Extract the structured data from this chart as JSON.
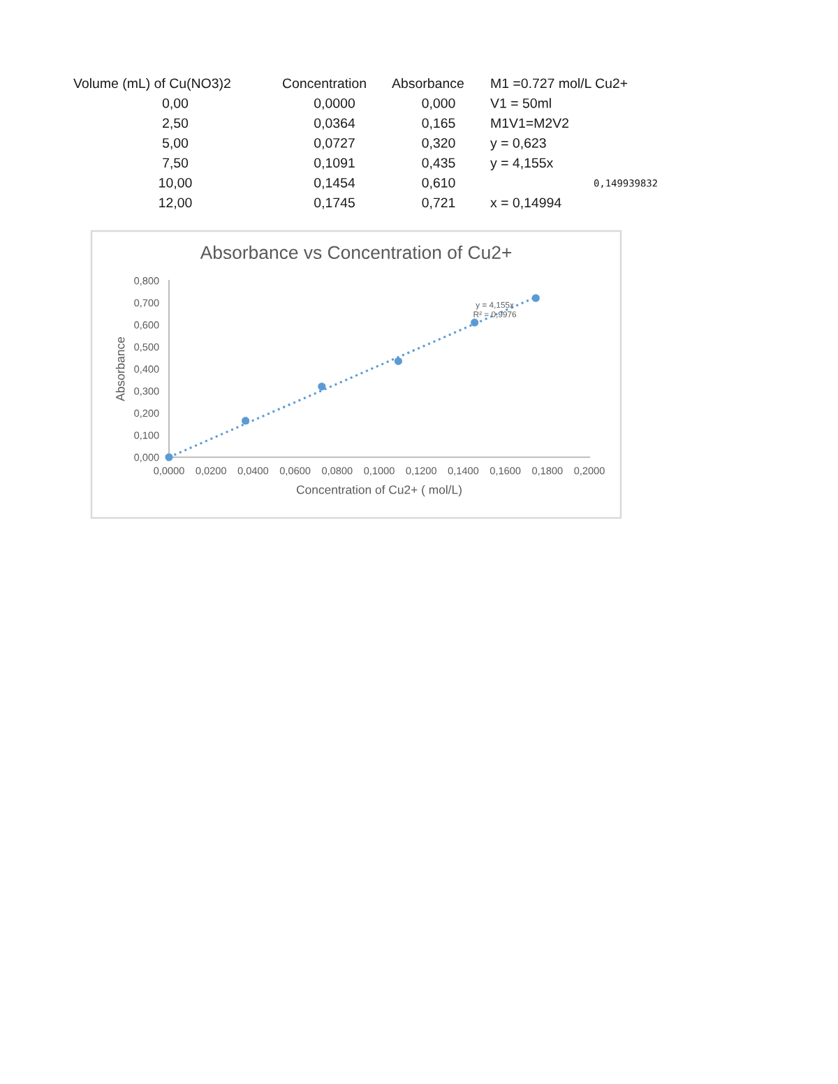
{
  "chart_data": {
    "type": "scatter",
    "title": "Absorbance vs Concentration of Cu2+",
    "xlabel": "Concentration of Cu2+ ( mol/L)",
    "ylabel": "Absorbance",
    "marker": "circle",
    "series": [
      {
        "color": "#5b9bd5",
        "x": [
          0.0,
          0.0364,
          0.0727,
          0.1091,
          0.1454,
          0.1745
        ],
        "values": [
          0.0,
          0.165,
          0.32,
          0.435,
          0.61,
          0.721
        ]
      },
      {
        "type": "line",
        "color": "#5b9bd5",
        "marker": "none",
        "line_style": "dotted",
        "x": [
          0.0,
          0.1745
        ],
        "values": [
          0.0,
          0.725
        ]
      }
    ],
    "xlim": [
      0,
      0.2
    ],
    "xticks": [
      {
        "value": 0,
        "label": "0,0000"
      },
      {
        "value": 0.02,
        "label": "0,0200"
      },
      {
        "value": 0.04,
        "label": "0,0400"
      },
      {
        "value": 0.06,
        "label": "0,0600"
      },
      {
        "value": 0.08,
        "label": "0,0800"
      },
      {
        "value": 0.1,
        "label": "0,1000"
      },
      {
        "value": 0.12,
        "label": "0,1200"
      },
      {
        "value": 0.14,
        "label": "0,1400"
      },
      {
        "value": 0.16,
        "label": "0,1600"
      },
      {
        "value": 0.18,
        "label": "0,1800"
      },
      {
        "value": 0.2,
        "label": "0,2000"
      }
    ],
    "ylim": [
      0,
      0.8
    ],
    "yticks": [
      {
        "value": 0,
        "label": "0,000"
      },
      {
        "value": 0.1,
        "label": "0,100"
      },
      {
        "value": 0.2,
        "label": "0,200"
      },
      {
        "value": 0.3,
        "label": "0,300"
      },
      {
        "value": 0.4,
        "label": "0,400"
      },
      {
        "value": 0.5,
        "label": "0,500"
      },
      {
        "value": 0.6,
        "label": "0,600"
      },
      {
        "value": 0.7,
        "label": "0,700"
      },
      {
        "value": 0.8,
        "label": "0,800"
      }
    ],
    "grid": false,
    "annotations": [
      "Volume (mL) of Cu(NO3)2\tConcentration\tAbsorbance\tM1 =0.727 mol/L Cu2+",
      "0,00\t0,0000\t0,000\tV1 = 50ml",
      "2,50\t0,0364\t0,165\tM1V1=M2V2",
      "5,00\t0,0727\t0,320\ty = 0,623",
      "7,50\t0,1091\t0,435\ty = 4,155x",
      "10,00\t0,1454\t0,610\t\t0,149939832",
      "12,00\t0,1745\t0,721\tx = 0,14994",
      {
        "text": "y = 4,155x\nR² = 0,9976",
        "x": 0.155,
        "y": 0.644
      }
    ]
  }
}
